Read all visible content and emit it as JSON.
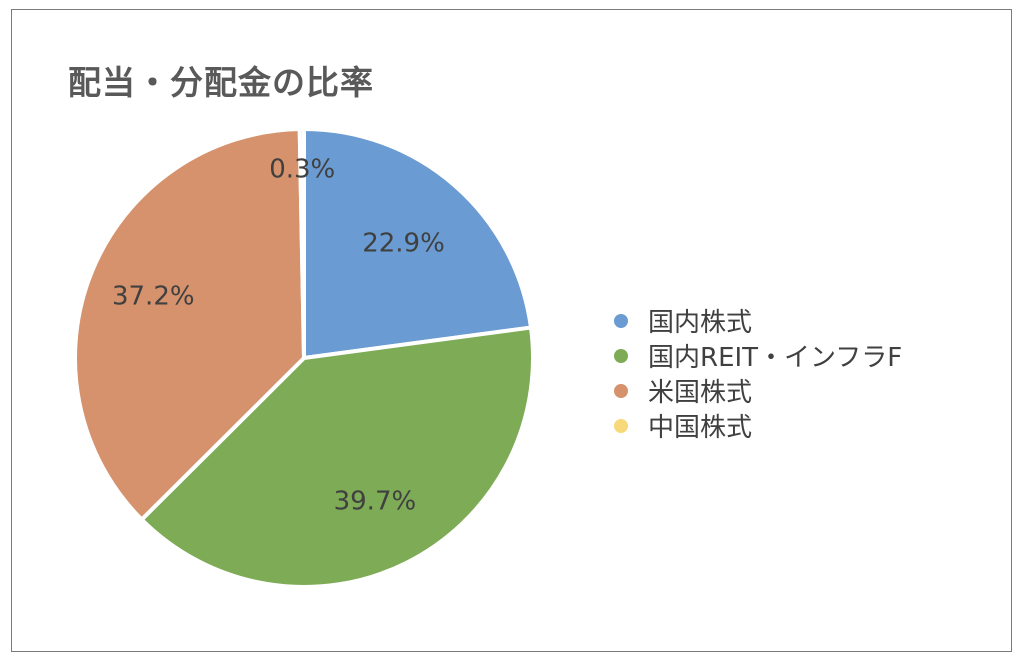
{
  "chart_data": {
    "type": "pie",
    "title": "配当・分配金の比率",
    "categories": [
      "国内株式",
      "国内REIT・インフラF",
      "米国株式",
      "中国株式"
    ],
    "values": [
      22.9,
      39.7,
      37.2,
      0.3
    ],
    "labels": [
      "22.9%",
      "39.7%",
      "37.2%",
      "0.3%"
    ],
    "colors": [
      "#6a9bd2",
      "#7eab55",
      "#d5926c",
      "#f8d97a"
    ],
    "legend_position": "right",
    "start_angle": "12 o'clock",
    "direction": "clockwise"
  }
}
